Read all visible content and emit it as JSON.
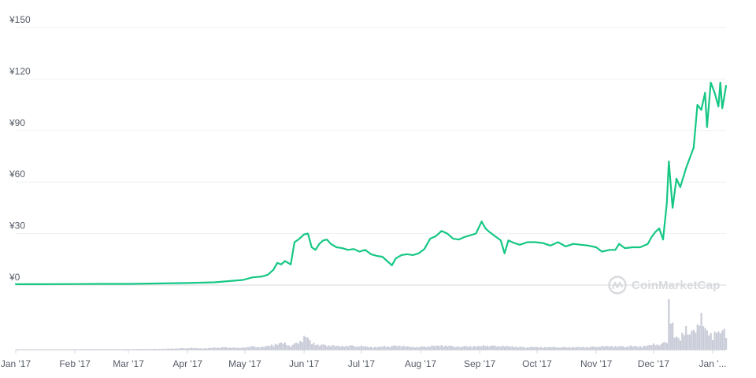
{
  "chart_data": {
    "type": "line",
    "currency_symbol": "¥",
    "y_ticks": [
      "¥0",
      "¥30",
      "¥60",
      "¥90",
      "¥120",
      "¥150"
    ],
    "y_tick_values": [
      0,
      30,
      60,
      90,
      120,
      150
    ],
    "ylim": [
      0,
      150
    ],
    "x_ticks": [
      "Jan '17",
      "Feb '17",
      "Mar '17",
      "Apr '17",
      "May '17",
      "Jun '17",
      "Jul '17",
      "Aug '17",
      "Sep '17",
      "Oct '17",
      "Nov '17",
      "Dec '17",
      "Jan '..."
    ],
    "x_tick_dates": [
      "2017-01-01",
      "2017-02-01",
      "2017-03-01",
      "2017-04-01",
      "2017-05-01",
      "2017-06-01",
      "2017-07-01",
      "2017-08-01",
      "2017-09-01",
      "2017-10-01",
      "2017-11-01",
      "2017-12-01",
      "2018-01-01"
    ],
    "xlim": [
      "2017-01-01",
      "2018-01-08"
    ],
    "grid": true,
    "series": [
      {
        "color": "#16c784",
        "points": [
          [
            "2017-01-01",
            0.5
          ],
          [
            "2017-01-15",
            0.5
          ],
          [
            "2017-02-01",
            0.6
          ],
          [
            "2017-02-15",
            0.7
          ],
          [
            "2017-03-01",
            0.7
          ],
          [
            "2017-03-15",
            0.9
          ],
          [
            "2017-04-01",
            1.2
          ],
          [
            "2017-04-15",
            1.6
          ],
          [
            "2017-04-30",
            3.0
          ],
          [
            "2017-05-05",
            4.5
          ],
          [
            "2017-05-10",
            5.0
          ],
          [
            "2017-05-13",
            6.0
          ],
          [
            "2017-05-16",
            9.0
          ],
          [
            "2017-05-18",
            13.0
          ],
          [
            "2017-05-20",
            12.0
          ],
          [
            "2017-05-22",
            14.0
          ],
          [
            "2017-05-25",
            12.0
          ],
          [
            "2017-05-27",
            25.0
          ],
          [
            "2017-05-29",
            26.5
          ],
          [
            "2017-06-01",
            29.5
          ],
          [
            "2017-06-03",
            30.0
          ],
          [
            "2017-06-05",
            22.0
          ],
          [
            "2017-06-07",
            20.5
          ],
          [
            "2017-06-09",
            24.0
          ],
          [
            "2017-06-11",
            26.0
          ],
          [
            "2017-06-13",
            26.5
          ],
          [
            "2017-06-15",
            24.0
          ],
          [
            "2017-06-18",
            22.0
          ],
          [
            "2017-06-21",
            21.5
          ],
          [
            "2017-06-24",
            20.5
          ],
          [
            "2017-06-27",
            21.0
          ],
          [
            "2017-06-30",
            19.5
          ],
          [
            "2017-07-03",
            20.5
          ],
          [
            "2017-07-06",
            18.0
          ],
          [
            "2017-07-09",
            17.0
          ],
          [
            "2017-07-12",
            16.5
          ],
          [
            "2017-07-15",
            13.5
          ],
          [
            "2017-07-17",
            11.5
          ],
          [
            "2017-07-19",
            15.5
          ],
          [
            "2017-07-22",
            17.5
          ],
          [
            "2017-07-25",
            18.0
          ],
          [
            "2017-07-28",
            17.5
          ],
          [
            "2017-07-31",
            18.5
          ],
          [
            "2017-08-03",
            21.0
          ],
          [
            "2017-08-06",
            27.0
          ],
          [
            "2017-08-09",
            28.5
          ],
          [
            "2017-08-12",
            31.5
          ],
          [
            "2017-08-15",
            30.0
          ],
          [
            "2017-08-18",
            27.0
          ],
          [
            "2017-08-21",
            26.5
          ],
          [
            "2017-08-24",
            28.0
          ],
          [
            "2017-08-27",
            29.0
          ],
          [
            "2017-08-30",
            30.0
          ],
          [
            "2017-09-02",
            37.0
          ],
          [
            "2017-09-04",
            33.0
          ],
          [
            "2017-09-06",
            31.0
          ],
          [
            "2017-09-09",
            28.5
          ],
          [
            "2017-09-12",
            26.0
          ],
          [
            "2017-09-14",
            18.5
          ],
          [
            "2017-09-16",
            26.0
          ],
          [
            "2017-09-19",
            24.5
          ],
          [
            "2017-09-22",
            23.5
          ],
          [
            "2017-09-26",
            25.0
          ],
          [
            "2017-09-30",
            25.0
          ],
          [
            "2017-10-04",
            24.5
          ],
          [
            "2017-10-08",
            23.0
          ],
          [
            "2017-10-12",
            25.0
          ],
          [
            "2017-10-16",
            22.5
          ],
          [
            "2017-10-20",
            24.0
          ],
          [
            "2017-10-24",
            23.5
          ],
          [
            "2017-10-28",
            23.0
          ],
          [
            "2017-11-01",
            22.0
          ],
          [
            "2017-11-04",
            19.5
          ],
          [
            "2017-11-08",
            20.5
          ],
          [
            "2017-11-11",
            20.5
          ],
          [
            "2017-11-13",
            24.0
          ],
          [
            "2017-11-16",
            21.5
          ],
          [
            "2017-11-20",
            22.0
          ],
          [
            "2017-11-24",
            22.0
          ],
          [
            "2017-11-28",
            24.0
          ],
          [
            "2017-11-30",
            28.0
          ],
          [
            "2017-12-02",
            31.0
          ],
          [
            "2017-12-04",
            33.0
          ],
          [
            "2017-12-06",
            26.5
          ],
          [
            "2017-12-08",
            48.0
          ],
          [
            "2017-12-09",
            72.0
          ],
          [
            "2017-12-11",
            45.0
          ],
          [
            "2017-12-13",
            62.0
          ],
          [
            "2017-12-15",
            57.0
          ],
          [
            "2017-12-18",
            68.0
          ],
          [
            "2017-12-20",
            74.0
          ],
          [
            "2017-12-22",
            80.0
          ],
          [
            "2017-12-24",
            105.0
          ],
          [
            "2017-12-26",
            102.0
          ],
          [
            "2017-12-28",
            112.0
          ],
          [
            "2017-12-29",
            92.0
          ],
          [
            "2017-12-31",
            118.0
          ],
          [
            "2018-01-02",
            112.0
          ],
          [
            "2018-01-04",
            104.0
          ],
          [
            "2018-01-05",
            118.0
          ],
          [
            "2018-01-06",
            103.0
          ],
          [
            "2018-01-08",
            116.0
          ]
        ]
      }
    ],
    "volume": [
      [
        "2017-01-01",
        0.2
      ],
      [
        "2017-01-20",
        0.2
      ],
      [
        "2017-02-10",
        0.3
      ],
      [
        "2017-03-01",
        0.3
      ],
      [
        "2017-03-20",
        0.5
      ],
      [
        "2017-04-01",
        1.0
      ],
      [
        "2017-04-10",
        0.8
      ],
      [
        "2017-04-20",
        1.5
      ],
      [
        "2017-04-28",
        1.0
      ],
      [
        "2017-05-05",
        2.0
      ],
      [
        "2017-05-10",
        1.5
      ],
      [
        "2017-05-16",
        3.0
      ],
      [
        "2017-05-20",
        4.0
      ],
      [
        "2017-05-25",
        2.5
      ],
      [
        "2017-05-30",
        5.0
      ],
      [
        "2017-06-02",
        8.5
      ],
      [
        "2017-06-05",
        3.5
      ],
      [
        "2017-06-10",
        3.0
      ],
      [
        "2017-06-15",
        2.5
      ],
      [
        "2017-06-20",
        2.0
      ],
      [
        "2017-06-25",
        2.5
      ],
      [
        "2017-07-01",
        2.0
      ],
      [
        "2017-07-08",
        1.5
      ],
      [
        "2017-07-15",
        2.0
      ],
      [
        "2017-07-20",
        2.5
      ],
      [
        "2017-07-28",
        1.5
      ],
      [
        "2017-08-05",
        2.0
      ],
      [
        "2017-08-12",
        2.5
      ],
      [
        "2017-08-20",
        2.0
      ],
      [
        "2017-09-01",
        2.0
      ],
      [
        "2017-09-05",
        2.5
      ],
      [
        "2017-09-15",
        2.0
      ],
      [
        "2017-09-25",
        1.5
      ],
      [
        "2017-10-05",
        1.5
      ],
      [
        "2017-10-15",
        1.5
      ],
      [
        "2017-10-25",
        1.5
      ],
      [
        "2017-11-05",
        2.0
      ],
      [
        "2017-11-15",
        2.0
      ],
      [
        "2017-11-25",
        2.0
      ],
      [
        "2017-12-01",
        3.0
      ],
      [
        "2017-12-05",
        3.5
      ],
      [
        "2017-12-08",
        5.0
      ],
      [
        "2017-12-09",
        30.0
      ],
      [
        "2017-12-10",
        20.0
      ],
      [
        "2017-12-12",
        8.0
      ],
      [
        "2017-12-15",
        6.0
      ],
      [
        "2017-12-18",
        14.0
      ],
      [
        "2017-12-20",
        9.0
      ],
      [
        "2017-12-22",
        12.0
      ],
      [
        "2017-12-24",
        16.0
      ],
      [
        "2017-12-26",
        18.0
      ],
      [
        "2017-12-28",
        12.0
      ],
      [
        "2017-12-30",
        10.0
      ],
      [
        "2018-01-01",
        8.0
      ],
      [
        "2018-01-03",
        12.0
      ],
      [
        "2018-01-05",
        9.0
      ],
      [
        "2018-01-06",
        12.0
      ],
      [
        "2018-01-08",
        8.0
      ]
    ]
  },
  "watermark": {
    "text": "CoinMarketCap",
    "icon": "coinmarketcap-logo-icon"
  }
}
